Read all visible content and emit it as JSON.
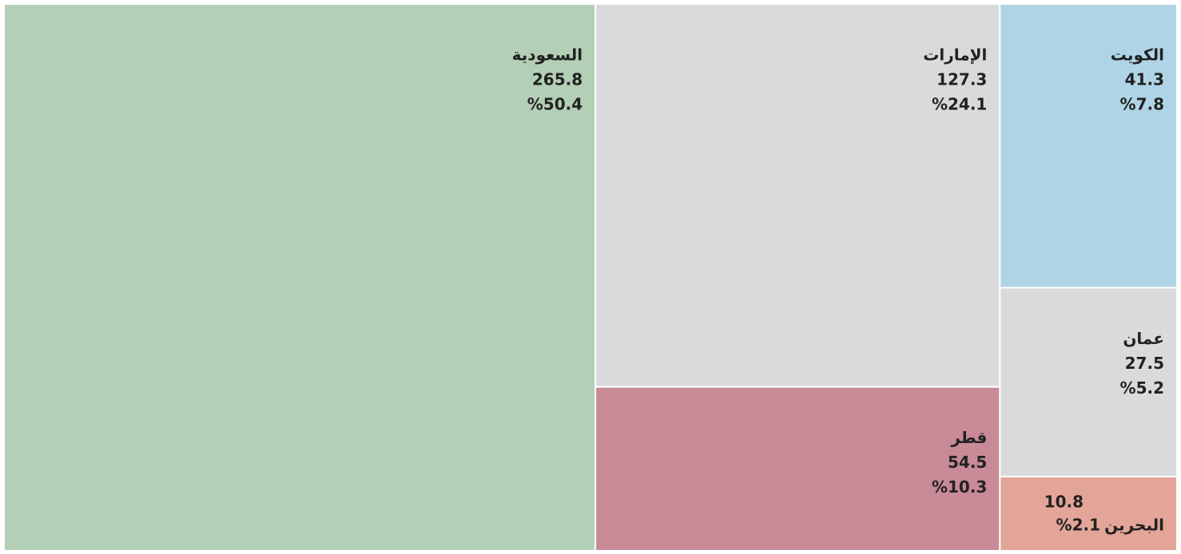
{
  "chart_data": {
    "type": "treemap",
    "categories": [
      "السعودية",
      "الإمارات",
      "قطر",
      "الكويت",
      "عمان",
      "البحرين"
    ],
    "values": [
      265.8,
      127.3,
      54.5,
      41.3,
      27.5,
      10.8
    ],
    "shares": [
      {
        "value": 50.4,
        "label": "%50.4"
      },
      {
        "value": 24.1,
        "label": "%24.1"
      },
      {
        "value": 10.3,
        "label": "%10.3"
      },
      {
        "value": 7.8,
        "label": "%7.8"
      },
      {
        "value": 5.2,
        "label": "%5.2"
      },
      {
        "value": 2.1,
        "label": "%2.1"
      }
    ],
    "colors": [
      "#b3cfb5",
      "#d9dadc",
      "#c98a98",
      "#afd4e6",
      "#d9dadc",
      "#e3a597"
    ]
  }
}
